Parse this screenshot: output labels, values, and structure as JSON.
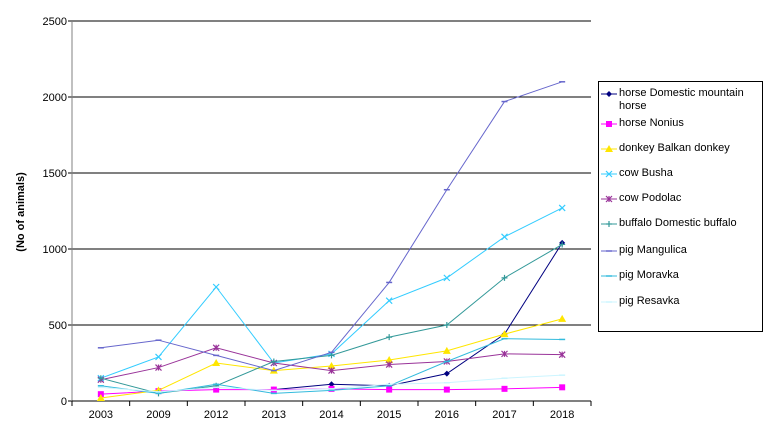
{
  "chart_data": {
    "type": "line",
    "title": "",
    "xlabel": "",
    "ylabel": "(No of animals)",
    "ylim": [
      0,
      2500
    ],
    "yticks": [
      0,
      500,
      1000,
      1500,
      2000,
      2500
    ],
    "grid": true,
    "legend_position": "right",
    "categories": [
      "2003",
      "2009",
      "2012",
      "2013",
      "2014",
      "2015",
      "2016",
      "2017",
      "2018"
    ],
    "series": [
      {
        "name": "horse Domestic mountain horse",
        "color": "#000080",
        "marker": "diamond",
        "values": [
          null,
          null,
          null,
          75,
          110,
          100,
          180,
          440,
          1040
        ]
      },
      {
        "name": "horse Nonius",
        "color": "#ff00ff",
        "marker": "square",
        "values": [
          45,
          65,
          75,
          75,
          80,
          75,
          75,
          80,
          90
        ]
      },
      {
        "name": "donkey Balkan donkey",
        "color": "#ffe600",
        "marker": "triangle",
        "values": [
          20,
          70,
          250,
          200,
          230,
          270,
          330,
          440,
          540
        ]
      },
      {
        "name": "cow Busha",
        "color": "#33ccff",
        "marker": "x",
        "values": [
          150,
          290,
          750,
          250,
          310,
          660,
          810,
          1080,
          1270
        ]
      },
      {
        "name": "cow Podolac",
        "color": "#993399",
        "marker": "star",
        "values": [
          140,
          220,
          350,
          250,
          200,
          240,
          260,
          310,
          305
        ]
      },
      {
        "name": "buffalo Domestic buffalo",
        "color": "#339999",
        "marker": "plus",
        "values": [
          150,
          50,
          100,
          260,
          300,
          420,
          500,
          810,
          1030
        ]
      },
      {
        "name": "pig  Mangulica",
        "color": "#6666cc",
        "marker": "dash",
        "values": [
          350,
          400,
          300,
          200,
          320,
          780,
          1390,
          1970,
          2100
        ]
      },
      {
        "name": "pig  Moravka",
        "color": "#33bbdd",
        "marker": "dash",
        "values": [
          100,
          50,
          110,
          50,
          70,
          100,
          260,
          410,
          405
        ]
      },
      {
        "name": "pig  Resavka",
        "color": "#ccf5ff",
        "marker": "dash",
        "values": [
          90,
          60,
          90,
          70,
          80,
          110,
          120,
          150,
          170
        ]
      }
    ]
  }
}
